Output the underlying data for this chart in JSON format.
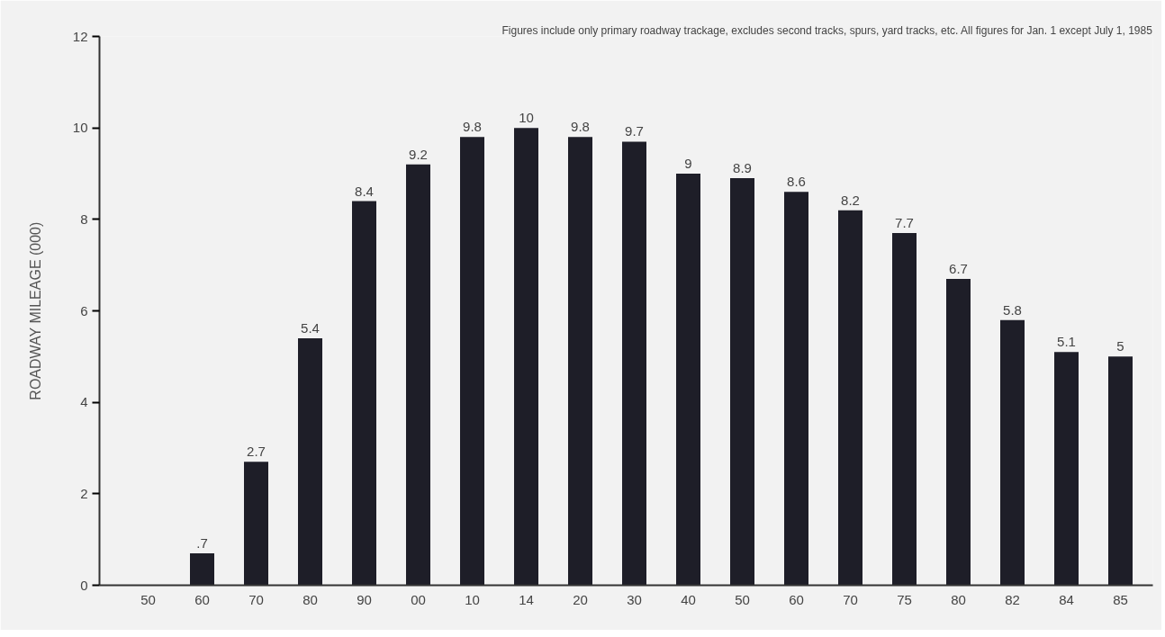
{
  "chart_data": {
    "type": "bar",
    "ylabel": "ROADWAY MILEAGE (000)",
    "annotations": [
      "Figures include only primary roadway trackage, excludes second tracks, spurs, yard tracks, etc. All figures for Jan. 1 except July 1, 1985"
    ],
    "categories": [
      "50",
      "60",
      "70",
      "80",
      "90",
      "00",
      "10",
      "14",
      "20",
      "30",
      "40",
      "50",
      "60",
      "70",
      "75",
      "80",
      "82",
      "84",
      "85"
    ],
    "values": [
      null,
      0.7,
      2.7,
      5.4,
      8.4,
      9.2,
      9.8,
      10,
      9.8,
      9.7,
      9,
      8.9,
      8.6,
      8.2,
      7.7,
      6.7,
      5.8,
      5.1,
      5
    ],
    "value_labels": [
      null,
      ".7",
      "2.7",
      "5.4",
      "8.4",
      "9.2",
      "9.8",
      "10",
      "9.8",
      "9.7",
      "9",
      "8.9",
      "8.6",
      "8.2",
      "7.7",
      "6.7",
      "5.8",
      "5.1",
      "5"
    ],
    "color": "#1e1e28",
    "ylim": [
      0,
      12
    ],
    "yticks": [
      0,
      2,
      4,
      6,
      8,
      10,
      12
    ],
    "grid": false
  }
}
